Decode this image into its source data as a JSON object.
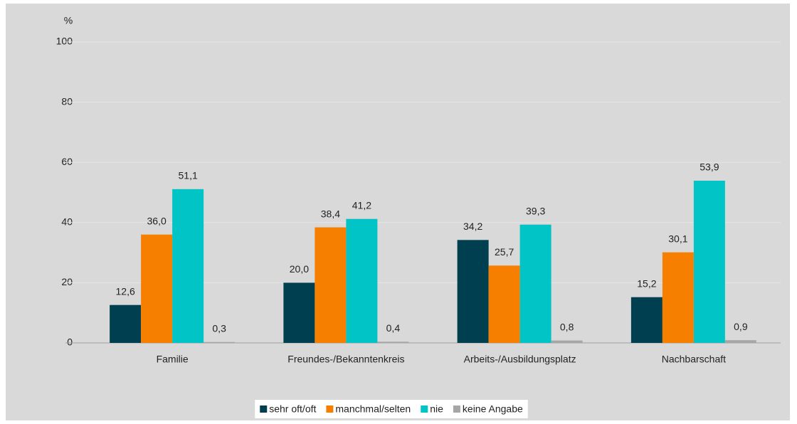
{
  "chart_data": {
    "type": "bar",
    "y_label": "%",
    "categories": [
      "Familie",
      "Freundes-/Bekanntenkreis",
      "Arbeits-/Ausbildungsplatz",
      "Nachbarschaft"
    ],
    "series": [
      {
        "name": "sehr oft/oft",
        "color": "#003f4f",
        "values": [
          12.6,
          20.0,
          34.2,
          15.2
        ],
        "value_labels": [
          "12,6",
          "20,0",
          "34,2",
          "15,2"
        ]
      },
      {
        "name": "manchmal/selten",
        "color": "#f77f00",
        "values": [
          36.0,
          38.4,
          25.7,
          30.1
        ],
        "value_labels": [
          "36,0",
          "38,4",
          "25,7",
          "30,1"
        ]
      },
      {
        "name": "nie",
        "color": "#00c4c6",
        "values": [
          51.1,
          41.2,
          39.3,
          53.9
        ],
        "value_labels": [
          "51,1",
          "41,2",
          "39,3",
          "53,9"
        ]
      },
      {
        "name": "keine Angabe",
        "color": "#a6a6a6",
        "values": [
          0.3,
          0.4,
          0.8,
          0.9
        ],
        "value_labels": [
          "0,3",
          "0,4",
          "0,8",
          "0,9"
        ]
      }
    ],
    "ylim": [
      0,
      100
    ],
    "yticks": [
      0,
      20,
      40,
      60,
      80,
      100
    ],
    "grid": true,
    "legend": "bottom"
  }
}
